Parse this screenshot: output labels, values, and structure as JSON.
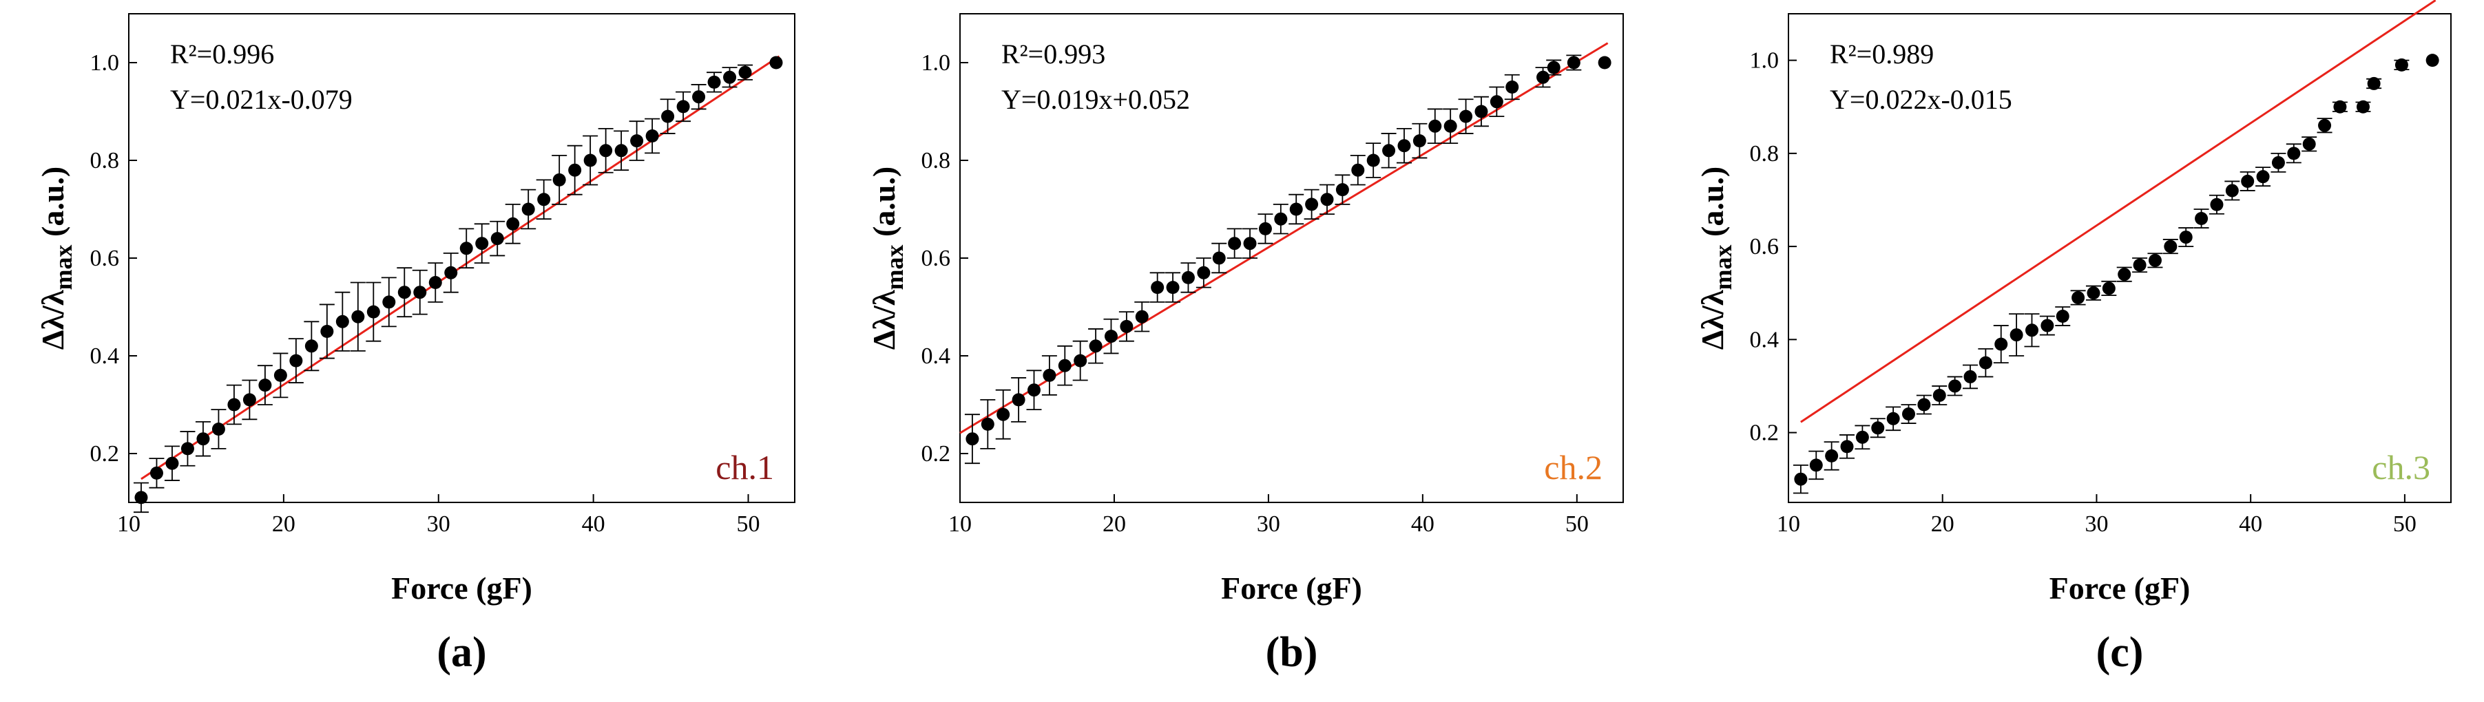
{
  "chart_data": [
    {
      "type": "scatter",
      "panel_label": "(a)",
      "xlabel": "Force (gF)",
      "ylabel": "Δλ/λmax (a.u.)",
      "ylabel_main": "Δλ/λ",
      "ylabel_sub": "max",
      "ylabel_units": " (a.u.)",
      "xlim": [
        10,
        53
      ],
      "ylim": [
        0.1,
        1.1
      ],
      "xticks": [
        10,
        20,
        30,
        40,
        50
      ],
      "yticks": [
        0.2,
        0.4,
        0.6,
        0.8,
        1.0
      ],
      "r2_label": "R²=0.996",
      "eq_label": "Y=0.021x-0.079",
      "fit": {
        "slope": 0.021,
        "intercept": -0.079,
        "x_range": [
          10.8,
          52.0
        ]
      },
      "channel_label": "ch.1",
      "channel_color": "#8B1A1A",
      "fit_color": "#e8221a",
      "x": [
        10.8,
        11.8,
        12.8,
        13.8,
        14.8,
        15.8,
        16.8,
        17.8,
        18.8,
        19.8,
        20.8,
        21.8,
        22.8,
        23.8,
        24.8,
        25.8,
        26.8,
        27.8,
        28.8,
        29.8,
        30.8,
        31.8,
        32.8,
        33.8,
        34.8,
        35.8,
        36.8,
        37.8,
        38.8,
        39.8,
        40.8,
        41.8,
        42.8,
        43.8,
        44.8,
        45.8,
        46.8,
        47.8,
        48.8,
        49.8,
        51.8
      ],
      "y": [
        0.11,
        0.16,
        0.18,
        0.21,
        0.23,
        0.25,
        0.3,
        0.31,
        0.34,
        0.36,
        0.39,
        0.42,
        0.45,
        0.47,
        0.48,
        0.49,
        0.51,
        0.53,
        0.53,
        0.55,
        0.57,
        0.62,
        0.63,
        0.64,
        0.67,
        0.7,
        0.72,
        0.76,
        0.78,
        0.8,
        0.82,
        0.82,
        0.84,
        0.85,
        0.89,
        0.91,
        0.93,
        0.96,
        0.97,
        0.98,
        1.0
      ],
      "yerr": [
        0.03,
        0.03,
        0.035,
        0.035,
        0.035,
        0.04,
        0.04,
        0.04,
        0.04,
        0.045,
        0.045,
        0.05,
        0.055,
        0.06,
        0.07,
        0.06,
        0.05,
        0.05,
        0.045,
        0.04,
        0.04,
        0.04,
        0.04,
        0.035,
        0.04,
        0.04,
        0.04,
        0.05,
        0.05,
        0.05,
        0.045,
        0.04,
        0.04,
        0.035,
        0.035,
        0.03,
        0.025,
        0.02,
        0.02,
        0.015,
        0.0
      ]
    },
    {
      "type": "scatter",
      "panel_label": "(b)",
      "xlabel": "Force (gF)",
      "ylabel": "Δλ/λmax (a.u.)",
      "ylabel_main": "Δλ/λ",
      "ylabel_sub": "max",
      "ylabel_units": " (a.u.)",
      "xlim": [
        10,
        53
      ],
      "ylim": [
        0.1,
        1.1
      ],
      "xticks": [
        10,
        20,
        30,
        40,
        50
      ],
      "yticks": [
        0.2,
        0.4,
        0.6,
        0.8,
        1.0
      ],
      "r2_label": "R²=0.993",
      "eq_label": "Y=0.019x+0.052",
      "fit": {
        "slope": 0.019,
        "intercept": 0.052,
        "x_range": [
          10.0,
          52.0
        ]
      },
      "channel_label": "ch.2",
      "channel_color": "#e87722",
      "fit_color": "#e8221a",
      "x": [
        10.8,
        11.8,
        12.8,
        13.8,
        14.8,
        15.8,
        16.8,
        17.8,
        18.8,
        19.8,
        20.8,
        21.8,
        22.8,
        23.8,
        24.8,
        25.8,
        26.8,
        27.8,
        28.8,
        29.8,
        30.8,
        31.8,
        32.8,
        33.8,
        34.8,
        35.8,
        36.8,
        37.8,
        38.8,
        39.8,
        40.8,
        41.8,
        42.8,
        43.8,
        44.8,
        45.8,
        47.8,
        48.5,
        49.8,
        51.8
      ],
      "y": [
        0.23,
        0.26,
        0.28,
        0.31,
        0.33,
        0.36,
        0.38,
        0.39,
        0.42,
        0.44,
        0.46,
        0.48,
        0.54,
        0.54,
        0.56,
        0.57,
        0.6,
        0.63,
        0.63,
        0.66,
        0.68,
        0.7,
        0.71,
        0.72,
        0.74,
        0.78,
        0.8,
        0.82,
        0.83,
        0.84,
        0.87,
        0.87,
        0.89,
        0.9,
        0.92,
        0.95,
        0.97,
        0.99,
        1.0,
        1.0
      ],
      "yerr": [
        0.05,
        0.05,
        0.05,
        0.045,
        0.04,
        0.04,
        0.04,
        0.04,
        0.035,
        0.035,
        0.03,
        0.03,
        0.03,
        0.03,
        0.03,
        0.03,
        0.03,
        0.03,
        0.03,
        0.03,
        0.03,
        0.03,
        0.03,
        0.03,
        0.03,
        0.03,
        0.035,
        0.035,
        0.035,
        0.035,
        0.035,
        0.035,
        0.035,
        0.03,
        0.03,
        0.025,
        0.02,
        0.015,
        0.015,
        0.0
      ]
    },
    {
      "type": "scatter",
      "panel_label": "(c)",
      "xlabel": "Force (gF)",
      "ylabel": "Δλ/λmax (a.u.)",
      "ylabel_main": "Δλ/λ",
      "ylabel_sub": "max",
      "ylabel_units": " (a.u.)",
      "xlim": [
        10,
        53
      ],
      "ylim": [
        0.05,
        1.1
      ],
      "xticks": [
        10,
        20,
        30,
        40,
        50
      ],
      "yticks": [
        0.2,
        0.4,
        0.6,
        0.8,
        1.0
      ],
      "r2_label": "R²=0.989",
      "eq_label": "Y=0.022x-0.015",
      "fit": {
        "slope": 0.022,
        "intercept": -0.015,
        "x_range": [
          10.8,
          52.0
        ]
      },
      "channel_label": "ch.3",
      "channel_color": "#9bbb59",
      "fit_color": "#e8221a",
      "x": [
        10.8,
        11.8,
        12.8,
        13.8,
        14.8,
        15.8,
        16.8,
        17.8,
        18.8,
        19.8,
        20.8,
        21.8,
        22.8,
        23.8,
        24.8,
        25.8,
        26.8,
        27.8,
        28.8,
        29.8,
        30.8,
        31.8,
        32.8,
        33.8,
        34.8,
        35.8,
        36.8,
        37.8,
        38.8,
        39.8,
        40.8,
        41.8,
        42.8,
        43.8,
        44.8,
        45.8,
        47.3,
        48.0,
        49.8,
        51.8
      ],
      "y": [
        0.1,
        0.13,
        0.15,
        0.17,
        0.19,
        0.21,
        0.23,
        0.24,
        0.26,
        0.28,
        0.3,
        0.32,
        0.35,
        0.39,
        0.41,
        0.42,
        0.43,
        0.45,
        0.49,
        0.5,
        0.51,
        0.54,
        0.56,
        0.57,
        0.6,
        0.62,
        0.66,
        0.69,
        0.72,
        0.74,
        0.75,
        0.78,
        0.8,
        0.82,
        0.86,
        0.9,
        0.9,
        0.95,
        0.99,
        1.0
      ],
      "yerr": [
        0.03,
        0.03,
        0.03,
        0.025,
        0.025,
        0.02,
        0.025,
        0.02,
        0.02,
        0.02,
        0.02,
        0.025,
        0.03,
        0.04,
        0.045,
        0.035,
        0.02,
        0.02,
        0.015,
        0.015,
        0.015,
        0.015,
        0.015,
        0.015,
        0.015,
        0.02,
        0.02,
        0.02,
        0.02,
        0.02,
        0.02,
        0.02,
        0.02,
        0.015,
        0.015,
        0.01,
        0.01,
        0.01,
        0.01,
        0.0
      ]
    }
  ]
}
